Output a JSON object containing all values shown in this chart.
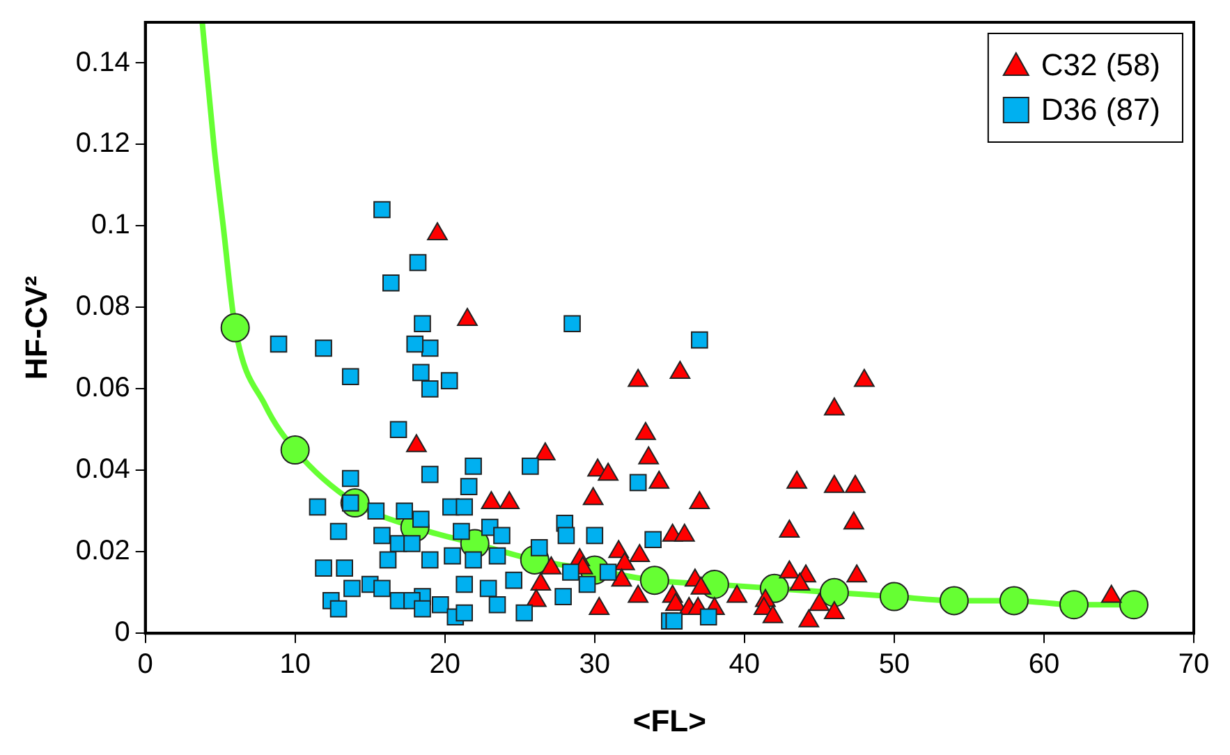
{
  "chart_data": {
    "type": "scatter",
    "xlabel": "<FL>",
    "ylabel": "HF-CV²",
    "xlim": [
      0,
      70
    ],
    "xticks": [
      0,
      10,
      20,
      30,
      40,
      50,
      60,
      70
    ],
    "ylim": [
      0,
      0.15
    ],
    "yticks": [
      0,
      0.02,
      0.04,
      0.06,
      0.08,
      0.1,
      0.12,
      0.14
    ],
    "grid": false,
    "legend": "top right",
    "series": [
      {
        "type": "line",
        "marker": "none",
        "color": "#66ff33",
        "x": [
          3.8,
          4.6,
          5.2,
          6,
          8,
          10,
          14,
          18,
          22,
          26,
          30,
          34,
          38,
          42,
          46,
          50,
          54,
          58,
          62,
          66
        ],
        "values": [
          0.15,
          0.119,
          0.1,
          0.075,
          0.056,
          0.045,
          0.032,
          0.026,
          0.022,
          0.018,
          0.0155,
          0.013,
          0.012,
          0.011,
          0.01,
          0.009,
          0.008,
          0.008,
          0.007,
          0.007
        ]
      },
      {
        "type": "scatter",
        "marker": "circle",
        "color": "#66ff33",
        "x": [
          6,
          10,
          14,
          18,
          22,
          26,
          30,
          34,
          38,
          42,
          46,
          50,
          54,
          58,
          62,
          66
        ],
        "values": [
          0.075,
          0.045,
          0.032,
          0.026,
          0.022,
          0.018,
          0.0155,
          0.013,
          0.012,
          0.011,
          0.01,
          0.009,
          0.008,
          0.008,
          0.007,
          0.007
        ]
      },
      {
        "type": "scatter",
        "marker": "triangle",
        "name": "C32 (58)",
        "color": "#ff0000",
        "x": [
          19.5,
          21.5,
          32.9,
          33.4,
          33.6,
          34.3,
          18.1,
          26.7,
          30.2,
          30.9,
          29.9,
          23.1,
          24.3,
          31.6,
          33.0,
          32.0,
          27.1,
          29.0,
          26.4,
          31.8,
          32.9,
          26.1,
          30.3,
          29.2,
          35.7,
          48.0,
          46.0,
          37.0,
          43.5,
          46.0,
          47.4,
          47.3,
          43.0,
          35.2,
          36.0,
          36.7,
          37.1,
          47.5,
          43.0,
          44.1,
          43.7,
          39.5,
          35.2,
          35.4,
          36.3,
          36.9,
          38.0,
          41.4,
          41.3,
          41.9,
          45.0,
          46.0,
          44.3,
          64.5
        ],
        "values": [
          0.098,
          0.077,
          0.062,
          0.049,
          0.043,
          0.037,
          0.046,
          0.044,
          0.04,
          0.039,
          0.033,
          0.032,
          0.032,
          0.02,
          0.019,
          0.017,
          0.016,
          0.018,
          0.012,
          0.013,
          0.009,
          0.008,
          0.006,
          0.016,
          0.064,
          0.062,
          0.055,
          0.032,
          0.037,
          0.036,
          0.036,
          0.027,
          0.025,
          0.024,
          0.024,
          0.013,
          0.011,
          0.014,
          0.015,
          0.014,
          0.012,
          0.009,
          0.009,
          0.007,
          0.006,
          0.006,
          0.006,
          0.008,
          0.006,
          0.004,
          0.007,
          0.005,
          0.003,
          0.009
        ]
      },
      {
        "type": "scatter",
        "marker": "square",
        "name": "D36 (87)",
        "color": "#00b0f0",
        "x": [
          15.8,
          16.4,
          18.2,
          18.5,
          19.0,
          18.4,
          19.0,
          20.3,
          8.9,
          11.9,
          13.7,
          18.0,
          28.5,
          37.0,
          16.9,
          19.0,
          21.9,
          21.6,
          20.4,
          21.3,
          18.4,
          21.1,
          23.0,
          23.8,
          25.7,
          19.0,
          20.5,
          21.9,
          23.5,
          26.3,
          28.0,
          28.1,
          30.0,
          32.9,
          33.9,
          18.5,
          19.7,
          21.3,
          22.9,
          24.6,
          20.7,
          21.3,
          23.5,
          25.3,
          27.9,
          29.5,
          30.9,
          28.4,
          35.0,
          35.3,
          37.6,
          13.7,
          11.5,
          13.7,
          15.4,
          17.3,
          15.8,
          12.9,
          16.9,
          17.8,
          16.2,
          11.9,
          13.3,
          13.8,
          15.0,
          15.8,
          16.9,
          17.8,
          12.4,
          12.9,
          18.5
        ],
        "values": [
          0.104,
          0.086,
          0.091,
          0.076,
          0.07,
          0.064,
          0.06,
          0.062,
          0.071,
          0.07,
          0.063,
          0.071,
          0.076,
          0.072,
          0.05,
          0.039,
          0.041,
          0.036,
          0.031,
          0.031,
          0.028,
          0.025,
          0.026,
          0.024,
          0.041,
          0.018,
          0.019,
          0.018,
          0.019,
          0.021,
          0.027,
          0.024,
          0.024,
          0.037,
          0.023,
          0.009,
          0.007,
          0.012,
          0.011,
          0.013,
          0.004,
          0.005,
          0.007,
          0.005,
          0.009,
          0.012,
          0.015,
          0.015,
          0.003,
          0.003,
          0.004,
          0.038,
          0.031,
          0.032,
          0.03,
          0.03,
          0.024,
          0.025,
          0.022,
          0.022,
          0.018,
          0.016,
          0.016,
          0.011,
          0.012,
          0.011,
          0.008,
          0.008,
          0.008,
          0.006,
          0.006
        ]
      }
    ]
  }
}
